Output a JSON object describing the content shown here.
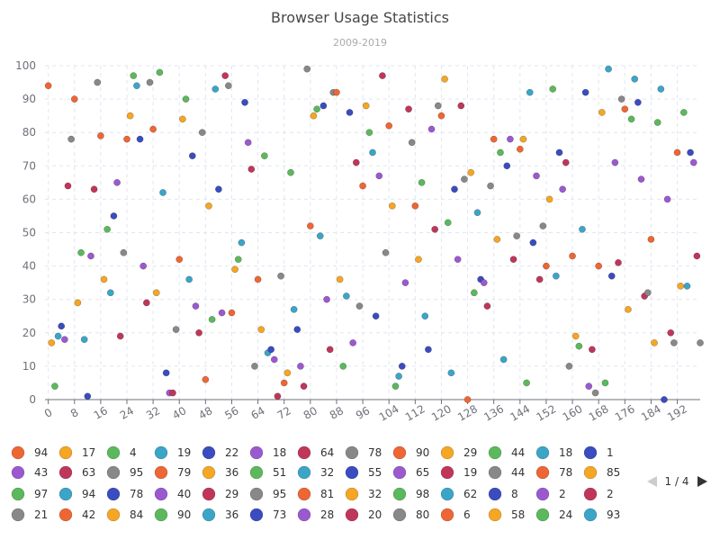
{
  "chart_data": {
    "type": "scatter",
    "title": "Browser Usage Statistics",
    "subtitle": "2009-2019",
    "xlabel": "",
    "ylabel": "",
    "xlim": [
      -1,
      199
    ],
    "ylim": [
      0,
      100
    ],
    "x_ticks": [
      0,
      8,
      16,
      24,
      32,
      40,
      48,
      56,
      64,
      72,
      80,
      88,
      96,
      104,
      112,
      120,
      128,
      136,
      144,
      152,
      160,
      168,
      176,
      184,
      192
    ],
    "y_ticks": [
      0,
      10,
      20,
      30,
      40,
      50,
      60,
      70,
      80,
      90,
      100
    ],
    "grid": true,
    "legend_position": "bottom",
    "colors": [
      "#ee6633",
      "#f5a623",
      "#5cb85c",
      "#3ba5c8",
      "#3b4cc0",
      "#9b59d0",
      "#c0365a",
      "#888888"
    ],
    "points": [
      {
        "x": 0,
        "y": 94,
        "c": 0
      },
      {
        "x": 1,
        "y": 17,
        "c": 1
      },
      {
        "x": 2,
        "y": 4,
        "c": 2
      },
      {
        "x": 3,
        "y": 19,
        "c": 3
      },
      {
        "x": 4,
        "y": 22,
        "c": 4
      },
      {
        "x": 5,
        "y": 18,
        "c": 5
      },
      {
        "x": 6,
        "y": 64,
        "c": 6
      },
      {
        "x": 7,
        "y": 78,
        "c": 7
      },
      {
        "x": 8,
        "y": 90,
        "c": 0
      },
      {
        "x": 9,
        "y": 29,
        "c": 1
      },
      {
        "x": 10,
        "y": 44,
        "c": 2
      },
      {
        "x": 11,
        "y": 18,
        "c": 3
      },
      {
        "x": 12,
        "y": 1,
        "c": 4
      },
      {
        "x": 13,
        "y": 43,
        "c": 5
      },
      {
        "x": 14,
        "y": 63,
        "c": 6
      },
      {
        "x": 15,
        "y": 95,
        "c": 7
      },
      {
        "x": 16,
        "y": 79,
        "c": 0
      },
      {
        "x": 17,
        "y": 36,
        "c": 1
      },
      {
        "x": 18,
        "y": 51,
        "c": 2
      },
      {
        "x": 19,
        "y": 32,
        "c": 3
      },
      {
        "x": 20,
        "y": 55,
        "c": 4
      },
      {
        "x": 21,
        "y": 65,
        "c": 5
      },
      {
        "x": 22,
        "y": 19,
        "c": 6
      },
      {
        "x": 23,
        "y": 44,
        "c": 7
      },
      {
        "x": 24,
        "y": 78,
        "c": 0
      },
      {
        "x": 25,
        "y": 85,
        "c": 1
      },
      {
        "x": 26,
        "y": 97,
        "c": 2
      },
      {
        "x": 27,
        "y": 94,
        "c": 3
      },
      {
        "x": 28,
        "y": 78,
        "c": 4
      },
      {
        "x": 29,
        "y": 40,
        "c": 5
      },
      {
        "x": 30,
        "y": 29,
        "c": 6
      },
      {
        "x": 31,
        "y": 95,
        "c": 7
      },
      {
        "x": 32,
        "y": 81,
        "c": 0
      },
      {
        "x": 33,
        "y": 32,
        "c": 1
      },
      {
        "x": 34,
        "y": 98,
        "c": 2
      },
      {
        "x": 35,
        "y": 62,
        "c": 3
      },
      {
        "x": 36,
        "y": 8,
        "c": 4
      },
      {
        "x": 37,
        "y": 2,
        "c": 5
      },
      {
        "x": 38,
        "y": 2,
        "c": 6
      },
      {
        "x": 39,
        "y": 21,
        "c": 7
      },
      {
        "x": 40,
        "y": 42,
        "c": 0
      },
      {
        "x": 41,
        "y": 84,
        "c": 1
      },
      {
        "x": 42,
        "y": 90,
        "c": 2
      },
      {
        "x": 43,
        "y": 36,
        "c": 3
      },
      {
        "x": 44,
        "y": 73,
        "c": 4
      },
      {
        "x": 45,
        "y": 28,
        "c": 5
      },
      {
        "x": 46,
        "y": 20,
        "c": 6
      },
      {
        "x": 47,
        "y": 80,
        "c": 7
      },
      {
        "x": 48,
        "y": 6,
        "c": 0
      },
      {
        "x": 49,
        "y": 58,
        "c": 1
      },
      {
        "x": 50,
        "y": 24,
        "c": 2
      },
      {
        "x": 51,
        "y": 93,
        "c": 3
      },
      {
        "x": 52,
        "y": 63,
        "c": 4
      },
      {
        "x": 53,
        "y": 26,
        "c": 5
      },
      {
        "x": 54,
        "y": 97,
        "c": 6
      },
      {
        "x": 55,
        "y": 94,
        "c": 7
      },
      {
        "x": 56,
        "y": 26,
        "c": 0
      },
      {
        "x": 57,
        "y": 39,
        "c": 1
      },
      {
        "x": 58,
        "y": 42,
        "c": 2
      },
      {
        "x": 59,
        "y": 47,
        "c": 3
      },
      {
        "x": 60,
        "y": 89,
        "c": 4
      },
      {
        "x": 61,
        "y": 77,
        "c": 5
      },
      {
        "x": 62,
        "y": 69,
        "c": 6
      },
      {
        "x": 63,
        "y": 10,
        "c": 7
      },
      {
        "x": 64,
        "y": 36,
        "c": 0
      },
      {
        "x": 65,
        "y": 21,
        "c": 1
      },
      {
        "x": 66,
        "y": 73,
        "c": 2
      },
      {
        "x": 67,
        "y": 14,
        "c": 3
      },
      {
        "x": 68,
        "y": 15,
        "c": 4
      },
      {
        "x": 69,
        "y": 12,
        "c": 5
      },
      {
        "x": 70,
        "y": 1,
        "c": 6
      },
      {
        "x": 71,
        "y": 37,
        "c": 7
      },
      {
        "x": 72,
        "y": 5,
        "c": 0
      },
      {
        "x": 73,
        "y": 8,
        "c": 1
      },
      {
        "x": 74,
        "y": 68,
        "c": 2
      },
      {
        "x": 75,
        "y": 27,
        "c": 3
      },
      {
        "x": 76,
        "y": 21,
        "c": 4
      },
      {
        "x": 77,
        "y": 10,
        "c": 5
      },
      {
        "x": 78,
        "y": 4,
        "c": 6
      },
      {
        "x": 79,
        "y": 99,
        "c": 7
      },
      {
        "x": 80,
        "y": 52,
        "c": 0
      },
      {
        "x": 81,
        "y": 85,
        "c": 1
      },
      {
        "x": 82,
        "y": 87,
        "c": 2
      },
      {
        "x": 83,
        "y": 49,
        "c": 3
      },
      {
        "x": 84,
        "y": 88,
        "c": 4
      },
      {
        "x": 85,
        "y": 30,
        "c": 5
      },
      {
        "x": 86,
        "y": 15,
        "c": 6
      },
      {
        "x": 87,
        "y": 92,
        "c": 7
      },
      {
        "x": 88,
        "y": 92,
        "c": 0
      },
      {
        "x": 89,
        "y": 36,
        "c": 1
      },
      {
        "x": 90,
        "y": 10,
        "c": 2
      },
      {
        "x": 91,
        "y": 31,
        "c": 3
      },
      {
        "x": 92,
        "y": 86,
        "c": 4
      },
      {
        "x": 93,
        "y": 17,
        "c": 5
      },
      {
        "x": 94,
        "y": 71,
        "c": 6
      },
      {
        "x": 95,
        "y": 28,
        "c": 7
      },
      {
        "x": 96,
        "y": 64,
        "c": 0
      },
      {
        "x": 97,
        "y": 88,
        "c": 1
      },
      {
        "x": 98,
        "y": 80,
        "c": 2
      },
      {
        "x": 99,
        "y": 74,
        "c": 3
      },
      {
        "x": 100,
        "y": 25,
        "c": 4
      },
      {
        "x": 101,
        "y": 67,
        "c": 5
      },
      {
        "x": 102,
        "y": 97,
        "c": 6
      },
      {
        "x": 103,
        "y": 44,
        "c": 7
      },
      {
        "x": 104,
        "y": 82,
        "c": 0
      },
      {
        "x": 105,
        "y": 58,
        "c": 1
      },
      {
        "x": 106,
        "y": 4,
        "c": 2
      },
      {
        "x": 107,
        "y": 7,
        "c": 3
      },
      {
        "x": 108,
        "y": 10,
        "c": 4
      },
      {
        "x": 109,
        "y": 35,
        "c": 5
      },
      {
        "x": 110,
        "y": 87,
        "c": 6
      },
      {
        "x": 111,
        "y": 77,
        "c": 7
      },
      {
        "x": 112,
        "y": 58,
        "c": 0
      },
      {
        "x": 113,
        "y": 42,
        "c": 1
      },
      {
        "x": 114,
        "y": 65,
        "c": 2
      },
      {
        "x": 115,
        "y": 25,
        "c": 3
      },
      {
        "x": 116,
        "y": 15,
        "c": 4
      },
      {
        "x": 117,
        "y": 81,
        "c": 5
      },
      {
        "x": 118,
        "y": 51,
        "c": 6
      },
      {
        "x": 119,
        "y": 88,
        "c": 7
      },
      {
        "x": 120,
        "y": 85,
        "c": 0
      },
      {
        "x": 121,
        "y": 96,
        "c": 1
      },
      {
        "x": 122,
        "y": 53,
        "c": 2
      },
      {
        "x": 123,
        "y": 8,
        "c": 3
      },
      {
        "x": 124,
        "y": 63,
        "c": 4
      },
      {
        "x": 125,
        "y": 42,
        "c": 5
      },
      {
        "x": 126,
        "y": 88,
        "c": 6
      },
      {
        "x": 127,
        "y": 66,
        "c": 7
      },
      {
        "x": 128,
        "y": 0,
        "c": 0
      },
      {
        "x": 129,
        "y": 68,
        "c": 1
      },
      {
        "x": 130,
        "y": 32,
        "c": 2
      },
      {
        "x": 131,
        "y": 56,
        "c": 3
      },
      {
        "x": 132,
        "y": 36,
        "c": 4
      },
      {
        "x": 133,
        "y": 35,
        "c": 5
      },
      {
        "x": 134,
        "y": 28,
        "c": 6
      },
      {
        "x": 135,
        "y": 64,
        "c": 7
      },
      {
        "x": 136,
        "y": 78,
        "c": 0
      },
      {
        "x": 137,
        "y": 48,
        "c": 1
      },
      {
        "x": 138,
        "y": 74,
        "c": 2
      },
      {
        "x": 139,
        "y": 12,
        "c": 3
      },
      {
        "x": 140,
        "y": 70,
        "c": 4
      },
      {
        "x": 141,
        "y": 78,
        "c": 5
      },
      {
        "x": 142,
        "y": 42,
        "c": 6
      },
      {
        "x": 143,
        "y": 49,
        "c": 7
      },
      {
        "x": 144,
        "y": 75,
        "c": 0
      },
      {
        "x": 145,
        "y": 78,
        "c": 1
      },
      {
        "x": 146,
        "y": 5,
        "c": 2
      },
      {
        "x": 147,
        "y": 92,
        "c": 3
      },
      {
        "x": 148,
        "y": 47,
        "c": 4
      },
      {
        "x": 149,
        "y": 67,
        "c": 5
      },
      {
        "x": 150,
        "y": 36,
        "c": 6
      },
      {
        "x": 151,
        "y": 52,
        "c": 7
      },
      {
        "x": 152,
        "y": 40,
        "c": 0
      },
      {
        "x": 153,
        "y": 60,
        "c": 1
      },
      {
        "x": 154,
        "y": 93,
        "c": 2
      },
      {
        "x": 155,
        "y": 37,
        "c": 3
      },
      {
        "x": 156,
        "y": 74,
        "c": 4
      },
      {
        "x": 157,
        "y": 63,
        "c": 5
      },
      {
        "x": 158,
        "y": 71,
        "c": 6
      },
      {
        "x": 159,
        "y": 10,
        "c": 7
      },
      {
        "x": 160,
        "y": 43,
        "c": 0
      },
      {
        "x": 161,
        "y": 19,
        "c": 1
      },
      {
        "x": 162,
        "y": 16,
        "c": 2
      },
      {
        "x": 163,
        "y": 51,
        "c": 3
      },
      {
        "x": 164,
        "y": 92,
        "c": 4
      },
      {
        "x": 165,
        "y": 4,
        "c": 5
      },
      {
        "x": 166,
        "y": 15,
        "c": 6
      },
      {
        "x": 167,
        "y": 2,
        "c": 7
      },
      {
        "x": 168,
        "y": 40,
        "c": 0
      },
      {
        "x": 169,
        "y": 86,
        "c": 1
      },
      {
        "x": 170,
        "y": 5,
        "c": 2
      },
      {
        "x": 171,
        "y": 99,
        "c": 3
      },
      {
        "x": 172,
        "y": 37,
        "c": 4
      },
      {
        "x": 173,
        "y": 71,
        "c": 5
      },
      {
        "x": 174,
        "y": 41,
        "c": 6
      },
      {
        "x": 175,
        "y": 90,
        "c": 7
      },
      {
        "x": 176,
        "y": 87,
        "c": 0
      },
      {
        "x": 177,
        "y": 27,
        "c": 1
      },
      {
        "x": 178,
        "y": 84,
        "c": 2
      },
      {
        "x": 179,
        "y": 96,
        "c": 3
      },
      {
        "x": 180,
        "y": 89,
        "c": 4
      },
      {
        "x": 181,
        "y": 66,
        "c": 5
      },
      {
        "x": 182,
        "y": 31,
        "c": 6
      },
      {
        "x": 183,
        "y": 32,
        "c": 7
      },
      {
        "x": 184,
        "y": 48,
        "c": 0
      },
      {
        "x": 185,
        "y": 17,
        "c": 1
      },
      {
        "x": 186,
        "y": 83,
        "c": 2
      },
      {
        "x": 187,
        "y": 93,
        "c": 3
      },
      {
        "x": 188,
        "y": 0,
        "c": 4
      },
      {
        "x": 189,
        "y": 60,
        "c": 5
      },
      {
        "x": 190,
        "y": 20,
        "c": 6
      },
      {
        "x": 191,
        "y": 17,
        "c": 7
      },
      {
        "x": 192,
        "y": 74,
        "c": 0
      },
      {
        "x": 193,
        "y": 34,
        "c": 1
      },
      {
        "x": 194,
        "y": 86,
        "c": 2
      },
      {
        "x": 195,
        "y": 34,
        "c": 3
      },
      {
        "x": 196,
        "y": 74,
        "c": 4
      },
      {
        "x": 197,
        "y": 71,
        "c": 5
      },
      {
        "x": 198,
        "y": 43,
        "c": 6
      },
      {
        "x": 199,
        "y": 17,
        "c": 7
      }
    ],
    "legend": {
      "page_text": "1 / 4",
      "items": [
        {
          "label": "94",
          "c": 0
        },
        {
          "label": "17",
          "c": 1
        },
        {
          "label": "4",
          "c": 2
        },
        {
          "label": "19",
          "c": 3
        },
        {
          "label": "22",
          "c": 4
        },
        {
          "label": "18",
          "c": 5
        },
        {
          "label": "64",
          "c": 6
        },
        {
          "label": "78",
          "c": 7
        },
        {
          "label": "90",
          "c": 0
        },
        {
          "label": "29",
          "c": 1
        },
        {
          "label": "44",
          "c": 2
        },
        {
          "label": "18",
          "c": 3
        },
        {
          "label": "1",
          "c": 4
        },
        {
          "label": "43",
          "c": 5
        },
        {
          "label": "63",
          "c": 6
        },
        {
          "label": "95",
          "c": 7
        },
        {
          "label": "79",
          "c": 0
        },
        {
          "label": "36",
          "c": 1
        },
        {
          "label": "51",
          "c": 2
        },
        {
          "label": "32",
          "c": 3
        },
        {
          "label": "55",
          "c": 4
        },
        {
          "label": "65",
          "c": 5
        },
        {
          "label": "19",
          "c": 6
        },
        {
          "label": "44",
          "c": 7
        },
        {
          "label": "78",
          "c": 0
        },
        {
          "label": "85",
          "c": 1
        },
        {
          "label": "97",
          "c": 2
        },
        {
          "label": "94",
          "c": 3
        },
        {
          "label": "78",
          "c": 4
        },
        {
          "label": "40",
          "c": 5
        },
        {
          "label": "29",
          "c": 6
        },
        {
          "label": "95",
          "c": 7
        },
        {
          "label": "81",
          "c": 0
        },
        {
          "label": "32",
          "c": 1
        },
        {
          "label": "98",
          "c": 2
        },
        {
          "label": "62",
          "c": 3
        },
        {
          "label": "8",
          "c": 4
        },
        {
          "label": "2",
          "c": 5
        },
        {
          "label": "2",
          "c": 6
        },
        {
          "label": "21",
          "c": 7
        },
        {
          "label": "42",
          "c": 0
        },
        {
          "label": "84",
          "c": 1
        },
        {
          "label": "90",
          "c": 2
        },
        {
          "label": "36",
          "c": 3
        },
        {
          "label": "73",
          "c": 4
        },
        {
          "label": "28",
          "c": 5
        },
        {
          "label": "20",
          "c": 6
        },
        {
          "label": "80",
          "c": 7
        },
        {
          "label": "6",
          "c": 0
        },
        {
          "label": "58",
          "c": 1
        },
        {
          "label": "24",
          "c": 2
        },
        {
          "label": "93",
          "c": 3
        }
      ]
    }
  }
}
